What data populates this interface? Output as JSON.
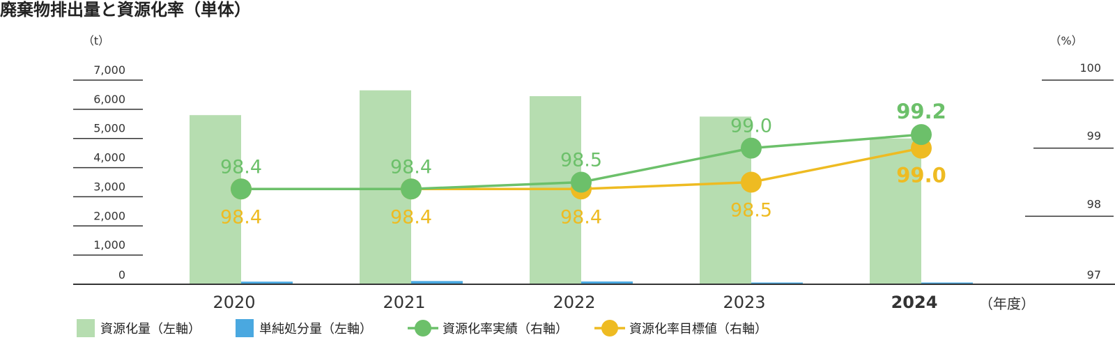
{
  "chart_data": {
    "type": "bar",
    "title": "廃棄物排出量と資源化率（単体）",
    "categories": [
      "2020",
      "2021",
      "2022",
      "2023",
      "2024"
    ],
    "x_unit": "（年度）",
    "y_left": {
      "unit": "（t）",
      "range": [
        0,
        7000
      ],
      "ticks": [
        "0",
        "1,000",
        "2,000",
        "3,000",
        "4,000",
        "5,000",
        "6,000",
        "7,000"
      ]
    },
    "y_right": {
      "unit": "（%）",
      "range": [
        97,
        100
      ],
      "ticks": [
        "97",
        "98",
        "99",
        "100"
      ]
    },
    "bar_series": [
      {
        "name": "資源化量（左軸）",
        "color": "#b6ddb0",
        "axis": "left",
        "values": [
          5800,
          6650,
          6450,
          5750,
          5000
        ]
      },
      {
        "name": "単純処分量（左軸）",
        "color": "#4aa8e0",
        "axis": "left",
        "values": [
          90,
          110,
          95,
          60,
          60
        ]
      }
    ],
    "line_series": [
      {
        "name": "資源化率実績（右軸）",
        "color": "#6cc06a",
        "axis": "right",
        "values": [
          98.4,
          98.4,
          98.5,
          99.0,
          99.2
        ],
        "labels": [
          "98.4",
          "98.4",
          "98.5",
          "99.0",
          "99.2"
        ],
        "label_position": "above"
      },
      {
        "name": "資源化率目標値（右軸）",
        "color": "#eebb22",
        "axis": "right",
        "values": [
          98.4,
          98.4,
          98.4,
          98.5,
          99.0
        ],
        "labels": [
          "98.4",
          "98.4",
          "98.4",
          "98.5",
          "99.0"
        ],
        "label_position": "below"
      }
    ],
    "highlight_category": "2024",
    "legend_position": "bottom-left",
    "grid": false
  }
}
